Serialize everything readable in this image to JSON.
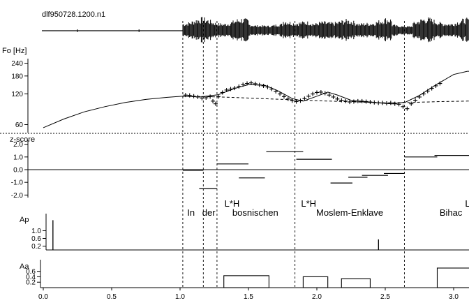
{
  "chart_data": {
    "type": "line",
    "file_id": "dlf950728.1200.n1",
    "x_axis": {
      "range": [
        0.0,
        3.25
      ],
      "ticks": [
        0.0,
        0.5,
        1.0,
        1.5,
        2.0,
        2.5,
        3.0
      ],
      "tick_labels": [
        "0.0",
        "0.5",
        "1.0",
        "1.5",
        "2.0",
        "2.5",
        "3.0"
      ]
    },
    "segment_boundaries": [
      1.02,
      1.17,
      1.27,
      1.84,
      2.64
    ],
    "words": [
      {
        "label": "In",
        "x": 1.08
      },
      {
        "label": "der",
        "x": 1.21
      },
      {
        "label": "bosnischen",
        "x": 1.55
      },
      {
        "label": "Moslem-Enklave",
        "x": 2.24
      },
      {
        "label": "Bihac",
        "x": 2.98
      }
    ],
    "tones": [
      {
        "label": "L*H",
        "x": 1.38
      },
      {
        "label": "L*H",
        "x": 1.94
      },
      {
        "label": "L*H-",
        "x": 3.15
      }
    ],
    "panels": [
      {
        "id": "waveform",
        "speech_start": 1.02,
        "speech_end": 3.25
      },
      {
        "id": "f0",
        "ylabel": "Fo [Hz]",
        "yscale": "log",
        "ylim": [
          55,
          250
        ],
        "yticks": [
          60,
          120,
          180,
          240
        ],
        "ytick_labels": [
          "60",
          "120",
          "180",
          "240"
        ],
        "series": [
          {
            "style": "solid",
            "points": [
              [
                0.0,
                56
              ],
              [
                0.15,
                68
              ],
              [
                0.3,
                80
              ],
              [
                0.45,
                90
              ],
              [
                0.6,
                99
              ],
              [
                0.75,
                106
              ],
              [
                0.9,
                111
              ],
              [
                1.02,
                114
              ],
              [
                1.15,
                112
              ],
              [
                1.28,
                118
              ],
              [
                1.4,
                136
              ],
              [
                1.5,
                148
              ],
              [
                1.62,
                146
              ],
              [
                1.72,
                128
              ],
              [
                1.82,
                108
              ],
              [
                1.9,
                102
              ],
              [
                2.0,
                114
              ],
              [
                2.08,
                125
              ],
              [
                2.15,
                117
              ],
              [
                2.25,
                104
              ],
              [
                2.35,
                100
              ],
              [
                2.45,
                98
              ],
              [
                2.55,
                96
              ],
              [
                2.65,
                100
              ],
              [
                2.75,
                116
              ],
              [
                2.88,
                150
              ],
              [
                3.0,
                186
              ],
              [
                3.1,
                200
              ],
              [
                3.25,
                198
              ]
            ]
          },
          {
            "style": "dashed",
            "points": [
              [
                1.02,
                114
              ],
              [
                1.3,
                112
              ],
              [
                1.6,
                108
              ],
              [
                1.9,
                104
              ],
              [
                2.2,
                101
              ],
              [
                2.5,
                98
              ],
              [
                2.7,
                99
              ],
              [
                2.9,
                101
              ],
              [
                3.1,
                102
              ],
              [
                3.25,
                102
              ]
            ]
          },
          {
            "style": "markers",
            "points": [
              [
                1.04,
                117
              ],
              [
                1.07,
                116
              ],
              [
                1.1,
                114
              ],
              [
                1.13,
                112
              ],
              [
                1.16,
                109
              ],
              [
                1.19,
                110
              ],
              [
                1.22,
                113
              ],
              [
                1.24,
                102
              ],
              [
                1.26,
                96
              ],
              [
                1.28,
                113
              ],
              [
                1.31,
                124
              ],
              [
                1.34,
                131
              ],
              [
                1.37,
                134
              ],
              [
                1.4,
                137
              ],
              [
                1.43,
                142
              ],
              [
                1.46,
                148
              ],
              [
                1.49,
                152
              ],
              [
                1.52,
                154
              ],
              [
                1.55,
                151
              ],
              [
                1.58,
                147
              ],
              [
                1.61,
                144
              ],
              [
                1.64,
                140
              ],
              [
                1.67,
                134
              ],
              [
                1.7,
                127
              ],
              [
                1.73,
                120
              ],
              [
                1.76,
                113
              ],
              [
                1.79,
                107
              ],
              [
                1.82,
                103
              ],
              [
                1.85,
                101
              ],
              [
                1.88,
                103
              ],
              [
                1.91,
                108
              ],
              [
                1.94,
                114
              ],
              [
                1.97,
                120
              ],
              [
                2.0,
                124
              ],
              [
                2.03,
                125
              ],
              [
                2.06,
                122
              ],
              [
                2.09,
                117
              ],
              [
                2.12,
                112
              ],
              [
                2.15,
                107
              ],
              [
                2.18,
                104
              ],
              [
                2.21,
                102
              ],
              [
                2.24,
                100
              ],
              [
                2.27,
                101
              ],
              [
                2.3,
                102
              ],
              [
                2.33,
                102
              ],
              [
                2.36,
                101
              ],
              [
                2.39,
                100
              ],
              [
                2.42,
                99
              ],
              [
                2.45,
                98
              ],
              [
                2.48,
                98
              ],
              [
                2.51,
                97
              ],
              [
                2.54,
                98
              ],
              [
                2.57,
                96
              ],
              [
                2.6,
                95
              ],
              [
                2.63,
                90
              ],
              [
                2.66,
                86
              ],
              [
                2.69,
                96
              ],
              [
                2.72,
                104
              ],
              [
                2.75,
                112
              ],
              [
                2.78,
                120
              ],
              [
                2.81,
                128
              ],
              [
                2.84,
                136
              ],
              [
                2.87,
                144
              ],
              [
                2.9,
                152
              ]
            ]
          }
        ]
      },
      {
        "id": "zscore",
        "ylabel": "z-score",
        "ylim": [
          -2.2,
          2.2
        ],
        "yticks": [
          -2.0,
          -1.0,
          0.0,
          1.0,
          2.0
        ],
        "ytick_labels": [
          "-2.0",
          "-1.0",
          "0.0",
          "1.0",
          "2.0"
        ],
        "segments": [
          {
            "x0": 1.02,
            "x1": 1.17,
            "y": -0.05
          },
          {
            "x0": 1.14,
            "x1": 1.27,
            "y": -1.5
          },
          {
            "x0": 1.27,
            "x1": 1.5,
            "y": 0.45
          },
          {
            "x0": 1.43,
            "x1": 1.62,
            "y": -0.65
          },
          {
            "x0": 1.63,
            "x1": 1.9,
            "y": 1.42
          },
          {
            "x0": 1.85,
            "x1": 2.11,
            "y": 0.82
          },
          {
            "x0": 2.1,
            "x1": 2.26,
            "y": -1.05
          },
          {
            "x0": 2.23,
            "x1": 2.37,
            "y": -0.6
          },
          {
            "x0": 2.33,
            "x1": 2.52,
            "y": -0.45
          },
          {
            "x0": 2.49,
            "x1": 2.64,
            "y": -0.3
          },
          {
            "x0": 2.64,
            "x1": 2.88,
            "y": 1.0
          },
          {
            "x0": 2.86,
            "x1": 3.25,
            "y": 1.12
          }
        ]
      },
      {
        "id": "Ap",
        "ylabel": "Ap",
        "ylim": [
          0,
          1.6
        ],
        "yticks": [
          0.2,
          0.6,
          1.0
        ],
        "ytick_labels": [
          "0.2",
          "0.6",
          "1.0"
        ],
        "impulses": [
          {
            "x": 0.04,
            "value": 1.55
          },
          {
            "x": 2.42,
            "value": 0.55
          }
        ]
      },
      {
        "id": "Aa",
        "ylabel": "Aa",
        "ylim": [
          0,
          0.95
        ],
        "yticks": [
          0.2,
          0.4,
          0.6
        ],
        "ytick_labels": [
          "0.2",
          "0.4",
          "0.6"
        ],
        "boxes": [
          {
            "x0": 1.32,
            "x1": 1.65,
            "value": 0.44
          },
          {
            "x0": 1.9,
            "x1": 2.08,
            "value": 0.4
          },
          {
            "x0": 2.18,
            "x1": 2.39,
            "value": 0.33
          },
          {
            "x0": 2.88,
            "x1": 3.25,
            "value": 0.72
          }
        ]
      }
    ]
  }
}
